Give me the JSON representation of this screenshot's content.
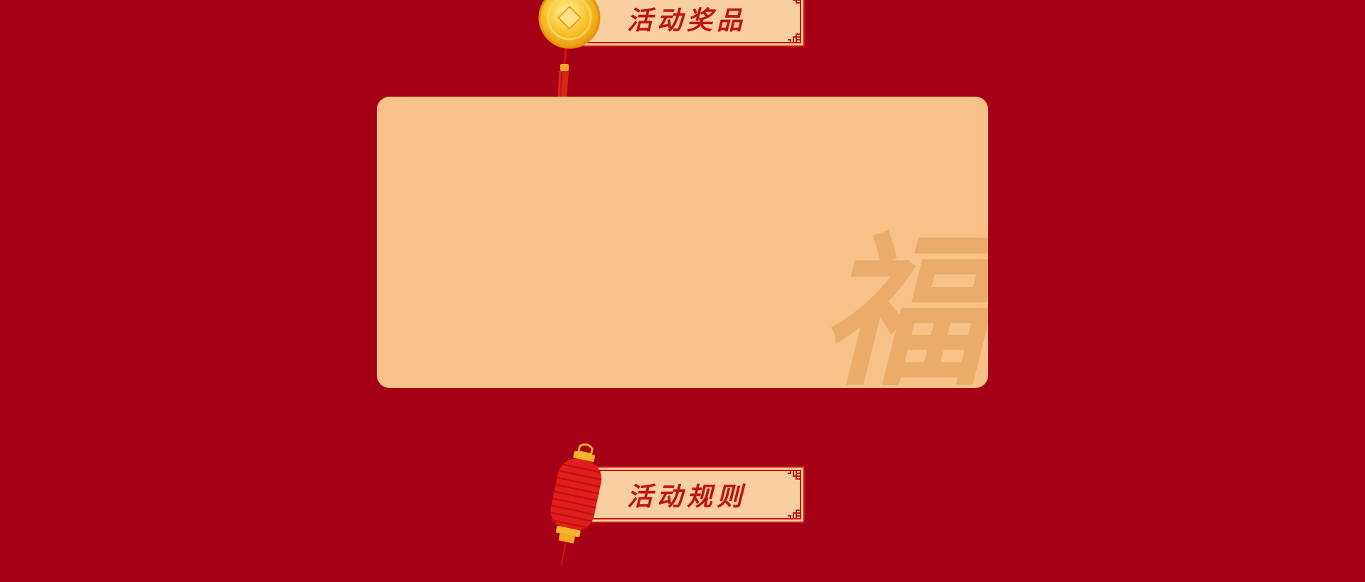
{
  "sections": {
    "prizes": {
      "title": "活动奖品"
    },
    "rules": {
      "title": "活动规则"
    }
  },
  "watermark": {
    "char": "福"
  },
  "colors": {
    "background": "#a50016",
    "banner_fill": "#f9cfa2",
    "banner_border": "#c9150f",
    "banner_text": "#c0140f",
    "panel_fill": "#f7c187",
    "watermark": "#e9a866",
    "gold": "#f8c22a"
  },
  "decorations": {
    "coin_icon": "gold-coin-icon",
    "lantern_icon": "red-lantern-icon",
    "corner_icon": "lattice-corner-icon"
  }
}
